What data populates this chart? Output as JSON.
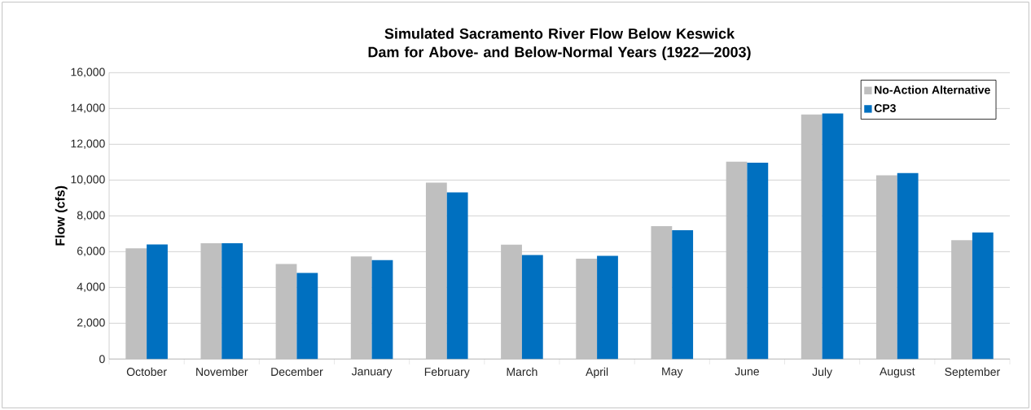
{
  "chart_data": {
    "type": "bar",
    "title": "Simulated Sacramento River Flow Below Keswick Dam for Above- and Below-Normal Years (1922—2003)",
    "ylabel": "Flow (cfs)",
    "categories": [
      "October",
      "November",
      "December",
      "January",
      "February",
      "March",
      "April",
      "May",
      "June",
      "July",
      "August",
      "September"
    ],
    "series": [
      {
        "name": "No-Action Alternative",
        "color": "#bfbfbf",
        "values": [
          6190,
          6470,
          5310,
          5730,
          9860,
          6390,
          5610,
          7420,
          11030,
          13660,
          10260,
          6640
        ]
      },
      {
        "name": "CP3",
        "color": "#0070c0",
        "values": [
          6400,
          6470,
          4810,
          5530,
          9310,
          5810,
          5760,
          7200,
          10970,
          13720,
          10390,
          7070
        ]
      }
    ],
    "ylim": [
      0,
      16000
    ],
    "yticks": [
      0,
      {
        "value": 2000,
        "label": "2,000"
      },
      {
        "value": 4000,
        "label": "4,000"
      },
      {
        "value": 6000,
        "label": "6,000"
      },
      {
        "value": 8000,
        "label": "8,000"
      },
      {
        "value": 10000,
        "label": "10,000"
      },
      {
        "value": 12000,
        "label": "12,000"
      },
      {
        "value": 14000,
        "label": "14,000"
      },
      {
        "value": 16000,
        "label": "16,000"
      }
    ],
    "grid": "y",
    "legend": "top right"
  }
}
